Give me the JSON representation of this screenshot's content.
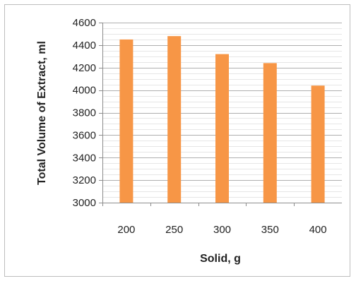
{
  "chart_data": {
    "type": "bar",
    "title": "",
    "xlabel": "Solid, g",
    "ylabel": "Total Volume of Extract, ml",
    "categories": [
      "200",
      "250",
      "300",
      "350",
      "400"
    ],
    "values": [
      4450,
      4480,
      4320,
      4240,
      4040
    ],
    "ylim": [
      3000,
      4600
    ],
    "y_major_ticks": [
      3000,
      3200,
      3400,
      3600,
      3800,
      4000,
      4200,
      4400,
      4600
    ],
    "y_minor_step": 50,
    "grid": true,
    "legend": "none",
    "bar_color": "#F79646",
    "grid_color": "#a6a6a6"
  }
}
